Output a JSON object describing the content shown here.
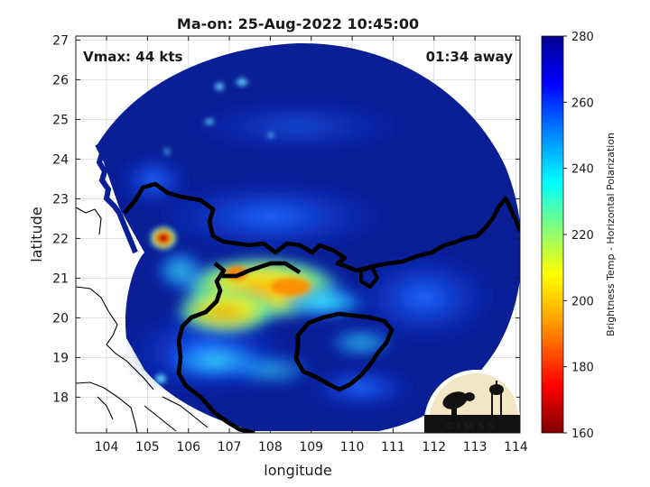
{
  "title": "Ma-on: 25-Aug-2022 10:45:00",
  "annotations": {
    "vmax": "Vmax: 44 kts",
    "time_away": "01:34 away"
  },
  "axes": {
    "xlabel": "longitude",
    "ylabel": "latitude",
    "xlim": [
      103.25,
      114.1
    ],
    "ylim": [
      17.1,
      27.1
    ],
    "xticks": [
      "104",
      "105",
      "106",
      "107",
      "108",
      "109",
      "110",
      "111",
      "112",
      "113",
      "114"
    ],
    "yticks": [
      "18",
      "19",
      "20",
      "21",
      "22",
      "23",
      "24",
      "25",
      "26",
      "27"
    ]
  },
  "colorbar": {
    "label": "Brightness Temp - Horizontal Polarization",
    "range": [
      160,
      280
    ],
    "ticks": [
      "160",
      "180",
      "200",
      "220",
      "240",
      "260",
      "280"
    ],
    "colormap": [
      "#7f0000",
      "#ff0000",
      "#ffff00",
      "#7fff7f",
      "#00ffff",
      "#0000ff",
      "#00008f"
    ]
  },
  "logo": {
    "text": "CIMSS"
  },
  "colors": {
    "background": "#04128a",
    "coastline_fill": "#ffffff",
    "border": "#000000"
  }
}
